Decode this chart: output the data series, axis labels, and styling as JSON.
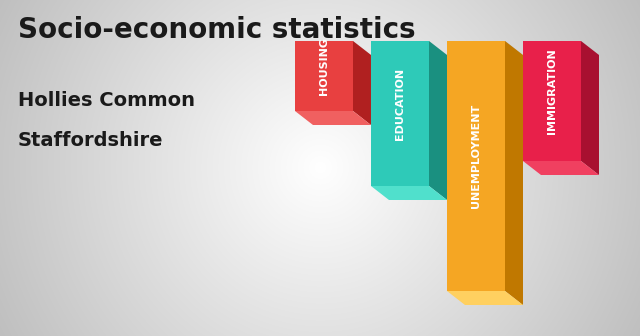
{
  "title": "Socio-economic statistics",
  "subtitle1": "Hollies Common",
  "subtitle2": "Staffordshire",
  "categories": [
    "HOUSING",
    "EDUCATION",
    "UNEMPLOYMENT",
    "IMMIGRATION"
  ],
  "values": [
    0.28,
    0.58,
    1.0,
    0.48
  ],
  "bar_colors": [
    "#E84040",
    "#2ECAB8",
    "#F5A623",
    "#E8204A"
  ],
  "bar_dark_colors": [
    "#B02020",
    "#1A9080",
    "#C07800",
    "#A81030"
  ],
  "bar_top_colors": [
    "#F06060",
    "#50E0CC",
    "#FFD060",
    "#F04060"
  ],
  "text_color": "#1A1A1A",
  "title_fontsize": 20,
  "subtitle_fontsize": 14,
  "bar_label_fontsize": 8
}
